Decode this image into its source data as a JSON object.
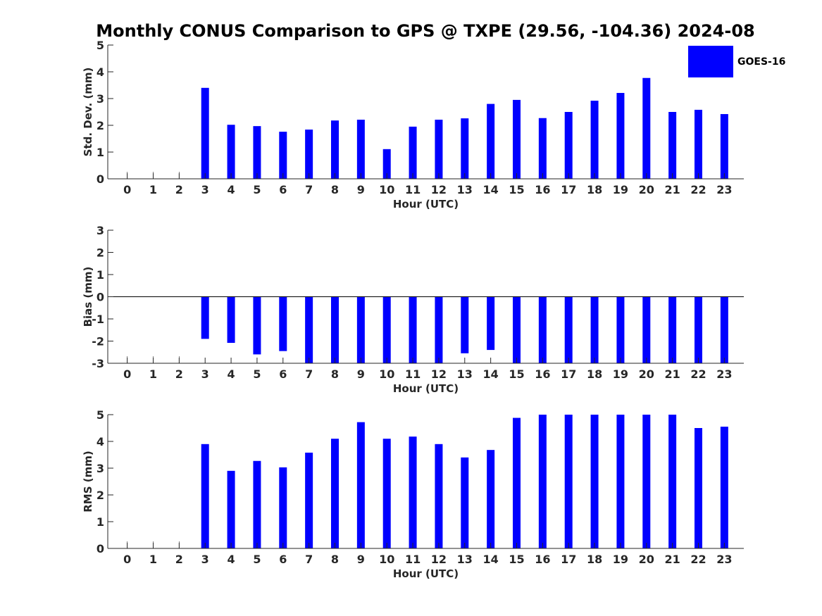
{
  "chart_data": [
    {
      "type": "bar",
      "title": "Monthly CONUS Comparison to GPS @ TXPE (29.56, -104.36) 2024-08",
      "xlabel": "Hour (UTC)",
      "ylabel": "Std. Dev. (mm)",
      "ylim": [
        0,
        5
      ],
      "yticks": [
        "0",
        "1",
        "2",
        "3",
        "4",
        "5"
      ],
      "categories": [
        "0",
        "1",
        "2",
        "3",
        "4",
        "5",
        "6",
        "7",
        "8",
        "9",
        "10",
        "11",
        "12",
        "13",
        "14",
        "15",
        "16",
        "17",
        "18",
        "19",
        "20",
        "21",
        "22",
        "23"
      ],
      "series": [
        {
          "name": "GOES-16",
          "color": "#0000ff",
          "values": [
            null,
            null,
            null,
            3.4,
            2.02,
            1.97,
            1.76,
            1.84,
            2.18,
            2.21,
            1.11,
            1.95,
            2.21,
            2.26,
            2.8,
            2.95,
            2.27,
            2.5,
            2.92,
            3.21,
            3.77,
            2.5,
            2.58,
            2.42
          ]
        }
      ],
      "legend": {
        "position": "top-right",
        "entries": [
          "GOES-16"
        ]
      }
    },
    {
      "type": "bar",
      "xlabel": "Hour (UTC)",
      "ylabel": "Bias (mm)",
      "ylim": [
        -3,
        3
      ],
      "yticks": [
        "-3",
        "-2",
        "-1",
        "0",
        "1",
        "2",
        "3"
      ],
      "categories": [
        "0",
        "1",
        "2",
        "3",
        "4",
        "5",
        "6",
        "7",
        "8",
        "9",
        "10",
        "11",
        "12",
        "13",
        "14",
        "15",
        "16",
        "17",
        "18",
        "19",
        "20",
        "21",
        "22",
        "23"
      ],
      "series": [
        {
          "name": "GOES-16",
          "color": "#0000ff",
          "values": [
            null,
            null,
            null,
            -1.9,
            -2.08,
            -2.6,
            -2.45,
            -3.0,
            -3.0,
            -3.0,
            -3.0,
            -3.0,
            -3.0,
            -2.55,
            -2.4,
            -3.0,
            -3.0,
            -3.0,
            -3.0,
            -3.0,
            -3.0,
            -3.0,
            -3.0,
            -3.0
          ]
        }
      ]
    },
    {
      "type": "bar",
      "xlabel": "Hour (UTC)",
      "ylabel": "RMS (mm)",
      "ylim": [
        0,
        5
      ],
      "yticks": [
        "0",
        "1",
        "2",
        "3",
        "4",
        "5"
      ],
      "categories": [
        "0",
        "1",
        "2",
        "3",
        "4",
        "5",
        "6",
        "7",
        "8",
        "9",
        "10",
        "11",
        "12",
        "13",
        "14",
        "15",
        "16",
        "17",
        "18",
        "19",
        "20",
        "21",
        "22",
        "23"
      ],
      "series": [
        {
          "name": "GOES-16",
          "color": "#0000ff",
          "values": [
            null,
            null,
            null,
            3.9,
            2.9,
            3.27,
            3.03,
            3.58,
            4.1,
            4.72,
            4.1,
            4.18,
            3.9,
            3.4,
            3.68,
            4.88,
            5.0,
            5.0,
            5.0,
            5.0,
            5.0,
            5.0,
            4.5,
            4.55
          ]
        }
      ]
    }
  ]
}
